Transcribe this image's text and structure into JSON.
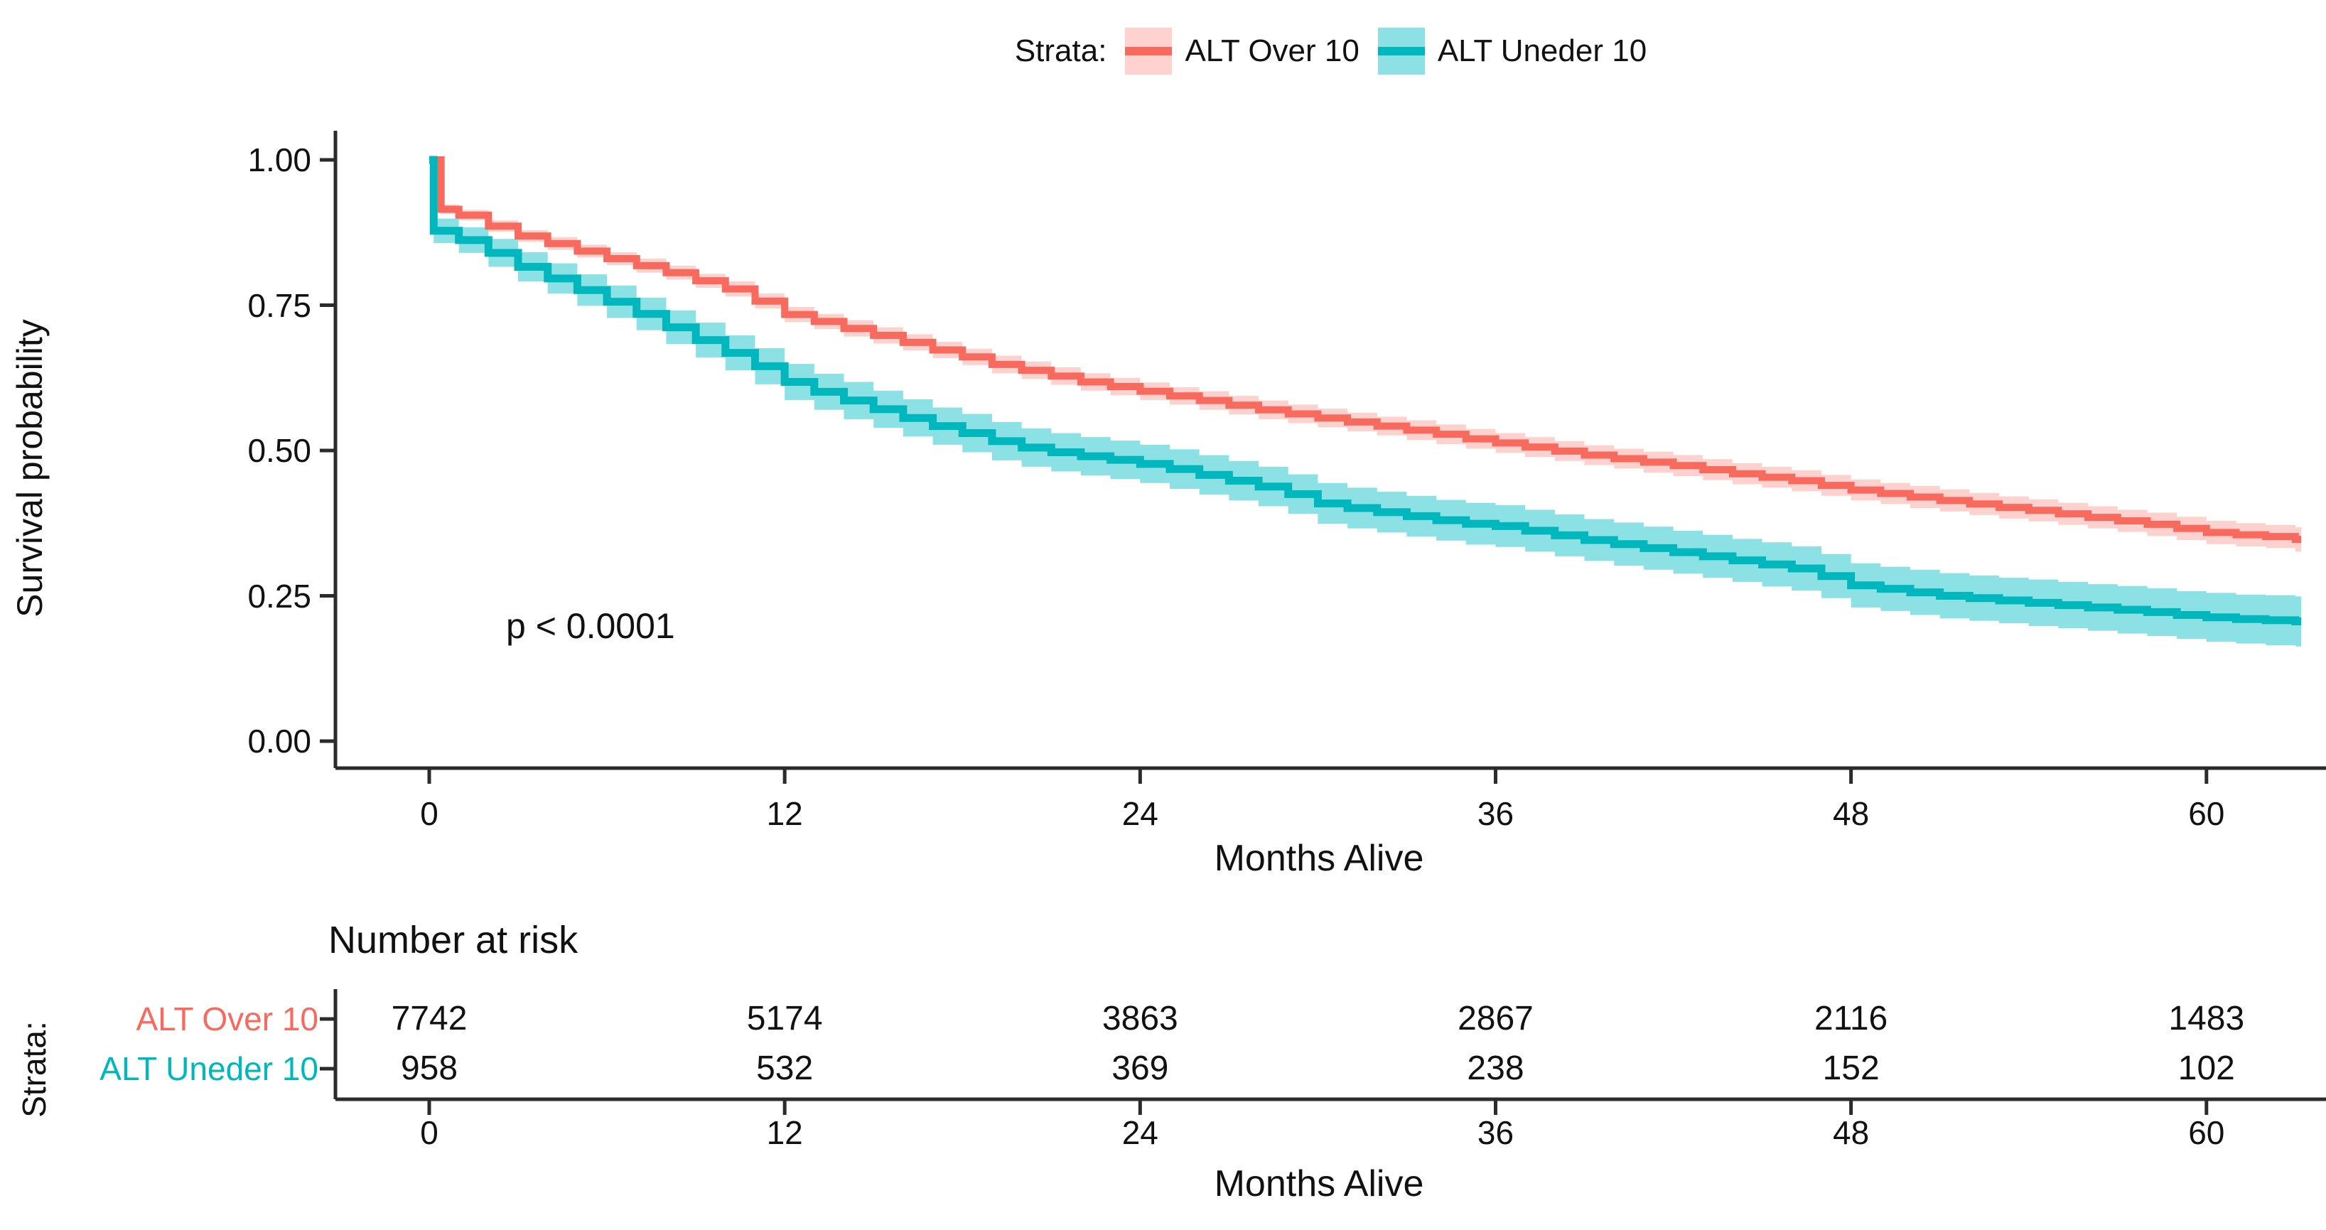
{
  "pvalue": "p < 0.0001",
  "legend": {
    "title": "Strata:",
    "items": [
      {
        "label": "ALT Over 10",
        "color": "#F8695E",
        "band": "#FDD2CE"
      },
      {
        "label": "ALT Uneder 10",
        "color": "#00B7BD",
        "band": "#8CE1E4"
      }
    ]
  },
  "chart_data": {
    "type": "line",
    "subtype": "kaplan-meier-step",
    "title": "",
    "xlabel": "Months Alive",
    "ylabel": "Survival probability",
    "xlim": [
      0,
      64
    ],
    "ylim": [
      0,
      1
    ],
    "xticks": [
      0,
      12,
      24,
      36,
      48,
      60
    ],
    "ytick_values": [
      0,
      0.25,
      0.5,
      0.75,
      1.0
    ],
    "ytick_labels": [
      "0.00",
      "0.25",
      "0.50",
      "0.75",
      "1.00"
    ],
    "legend_position": "top",
    "grid": false,
    "annotation": "p < 0.0001",
    "series": [
      {
        "name": "ALT Over 10",
        "color": "#F8695E",
        "band": "#FDD2CE",
        "steps": [
          [
            0,
            1.0,
            0
          ],
          [
            0.4,
            0.915,
            0.008
          ],
          [
            1,
            0.905,
            0.009
          ],
          [
            2,
            0.886,
            0.01
          ],
          [
            3,
            0.869,
            0.01
          ],
          [
            4,
            0.856,
            0.011
          ],
          [
            5,
            0.843,
            0.011
          ],
          [
            6,
            0.83,
            0.011
          ],
          [
            7,
            0.818,
            0.012
          ],
          [
            8,
            0.806,
            0.012
          ],
          [
            9,
            0.792,
            0.012
          ],
          [
            10,
            0.778,
            0.013
          ],
          [
            11,
            0.757,
            0.013
          ],
          [
            12,
            0.734,
            0.013
          ],
          [
            13,
            0.722,
            0.013
          ],
          [
            14,
            0.71,
            0.014
          ],
          [
            15,
            0.698,
            0.014
          ],
          [
            16,
            0.686,
            0.014
          ],
          [
            17,
            0.673,
            0.014
          ],
          [
            18,
            0.661,
            0.014
          ],
          [
            19,
            0.648,
            0.015
          ],
          [
            20,
            0.638,
            0.015
          ],
          [
            21,
            0.628,
            0.015
          ],
          [
            22,
            0.618,
            0.015
          ],
          [
            23,
            0.61,
            0.015
          ],
          [
            24,
            0.602,
            0.015
          ],
          [
            25,
            0.594,
            0.015
          ],
          [
            26,
            0.586,
            0.016
          ],
          [
            27,
            0.578,
            0.016
          ],
          [
            28,
            0.57,
            0.016
          ],
          [
            29,
            0.563,
            0.016
          ],
          [
            30,
            0.556,
            0.016
          ],
          [
            31,
            0.549,
            0.016
          ],
          [
            32,
            0.542,
            0.016
          ],
          [
            33,
            0.535,
            0.017
          ],
          [
            34,
            0.528,
            0.017
          ],
          [
            35,
            0.52,
            0.017
          ],
          [
            36,
            0.513,
            0.017
          ],
          [
            37,
            0.506,
            0.017
          ],
          [
            38,
            0.499,
            0.017
          ],
          [
            39,
            0.492,
            0.017
          ],
          [
            40,
            0.486,
            0.017
          ],
          [
            41,
            0.48,
            0.018
          ],
          [
            42,
            0.474,
            0.018
          ],
          [
            43,
            0.467,
            0.018
          ],
          [
            44,
            0.46,
            0.018
          ],
          [
            45,
            0.454,
            0.018
          ],
          [
            46,
            0.448,
            0.018
          ],
          [
            47,
            0.44,
            0.018
          ],
          [
            48,
            0.432,
            0.018
          ],
          [
            49,
            0.426,
            0.018
          ],
          [
            50,
            0.42,
            0.019
          ],
          [
            51,
            0.414,
            0.019
          ],
          [
            52,
            0.408,
            0.019
          ],
          [
            53,
            0.402,
            0.019
          ],
          [
            54,
            0.397,
            0.019
          ],
          [
            55,
            0.391,
            0.019
          ],
          [
            56,
            0.385,
            0.019
          ],
          [
            57,
            0.379,
            0.019
          ],
          [
            58,
            0.373,
            0.02
          ],
          [
            59,
            0.366,
            0.02
          ],
          [
            60,
            0.359,
            0.02
          ],
          [
            61,
            0.355,
            0.02
          ],
          [
            62,
            0.352,
            0.02
          ],
          [
            63,
            0.347,
            0.021
          ]
        ]
      },
      {
        "name": "ALT Uneder 10",
        "color": "#00B7BD",
        "band": "#8CE1E4",
        "steps": [
          [
            0,
            1.0,
            0
          ],
          [
            0.15,
            0.878,
            0.021
          ],
          [
            1,
            0.862,
            0.022
          ],
          [
            2,
            0.84,
            0.024
          ],
          [
            3,
            0.816,
            0.025
          ],
          [
            4,
            0.796,
            0.026
          ],
          [
            5,
            0.776,
            0.027
          ],
          [
            6,
            0.756,
            0.028
          ],
          [
            7,
            0.735,
            0.028
          ],
          [
            8,
            0.712,
            0.029
          ],
          [
            9,
            0.69,
            0.03
          ],
          [
            10,
            0.668,
            0.03
          ],
          [
            11,
            0.645,
            0.031
          ],
          [
            12,
            0.618,
            0.031
          ],
          [
            13,
            0.601,
            0.031
          ],
          [
            14,
            0.586,
            0.032
          ],
          [
            15,
            0.571,
            0.032
          ],
          [
            16,
            0.556,
            0.032
          ],
          [
            17,
            0.542,
            0.032
          ],
          [
            18,
            0.53,
            0.033
          ],
          [
            19,
            0.516,
            0.033
          ],
          [
            20,
            0.505,
            0.033
          ],
          [
            21,
            0.497,
            0.033
          ],
          [
            22,
            0.49,
            0.033
          ],
          [
            23,
            0.484,
            0.033
          ],
          [
            24,
            0.477,
            0.033
          ],
          [
            25,
            0.468,
            0.034
          ],
          [
            26,
            0.458,
            0.034
          ],
          [
            27,
            0.448,
            0.034
          ],
          [
            28,
            0.438,
            0.034
          ],
          [
            29,
            0.425,
            0.034
          ],
          [
            30,
            0.409,
            0.035
          ],
          [
            31,
            0.401,
            0.035
          ],
          [
            32,
            0.394,
            0.035
          ],
          [
            33,
            0.387,
            0.035
          ],
          [
            34,
            0.38,
            0.035
          ],
          [
            35,
            0.374,
            0.036
          ],
          [
            36,
            0.37,
            0.036
          ],
          [
            37,
            0.362,
            0.036
          ],
          [
            38,
            0.354,
            0.036
          ],
          [
            39,
            0.346,
            0.036
          ],
          [
            40,
            0.339,
            0.037
          ],
          [
            41,
            0.332,
            0.037
          ],
          [
            42,
            0.325,
            0.037
          ],
          [
            43,
            0.318,
            0.037
          ],
          [
            44,
            0.311,
            0.037
          ],
          [
            45,
            0.304,
            0.038
          ],
          [
            46,
            0.297,
            0.038
          ],
          [
            47,
            0.284,
            0.038
          ],
          [
            48,
            0.268,
            0.038
          ],
          [
            49,
            0.262,
            0.038
          ],
          [
            50,
            0.256,
            0.039
          ],
          [
            51,
            0.25,
            0.039
          ],
          [
            52,
            0.246,
            0.039
          ],
          [
            53,
            0.242,
            0.039
          ],
          [
            54,
            0.238,
            0.04
          ],
          [
            55,
            0.234,
            0.04
          ],
          [
            56,
            0.23,
            0.04
          ],
          [
            57,
            0.226,
            0.041
          ],
          [
            58,
            0.222,
            0.041
          ],
          [
            59,
            0.217,
            0.041
          ],
          [
            60,
            0.213,
            0.042
          ],
          [
            61,
            0.21,
            0.042
          ],
          [
            62,
            0.208,
            0.043
          ],
          [
            63,
            0.206,
            0.043
          ]
        ]
      }
    ]
  },
  "risk_table": {
    "title": "Number at risk",
    "strata_label": "Strata:",
    "axis_label": "Months Alive",
    "xticks": [
      0,
      12,
      24,
      36,
      48,
      60
    ],
    "rows": [
      {
        "label": "ALT Over 10",
        "color": "#F8695E",
        "values": [
          "7742",
          "5174",
          "3863",
          "2867",
          "2116",
          "1483"
        ]
      },
      {
        "label": "ALT Uneder 10",
        "color": "#00B7BD",
        "values": [
          "958",
          "532",
          "369",
          "238",
          "152",
          "102"
        ]
      }
    ]
  }
}
